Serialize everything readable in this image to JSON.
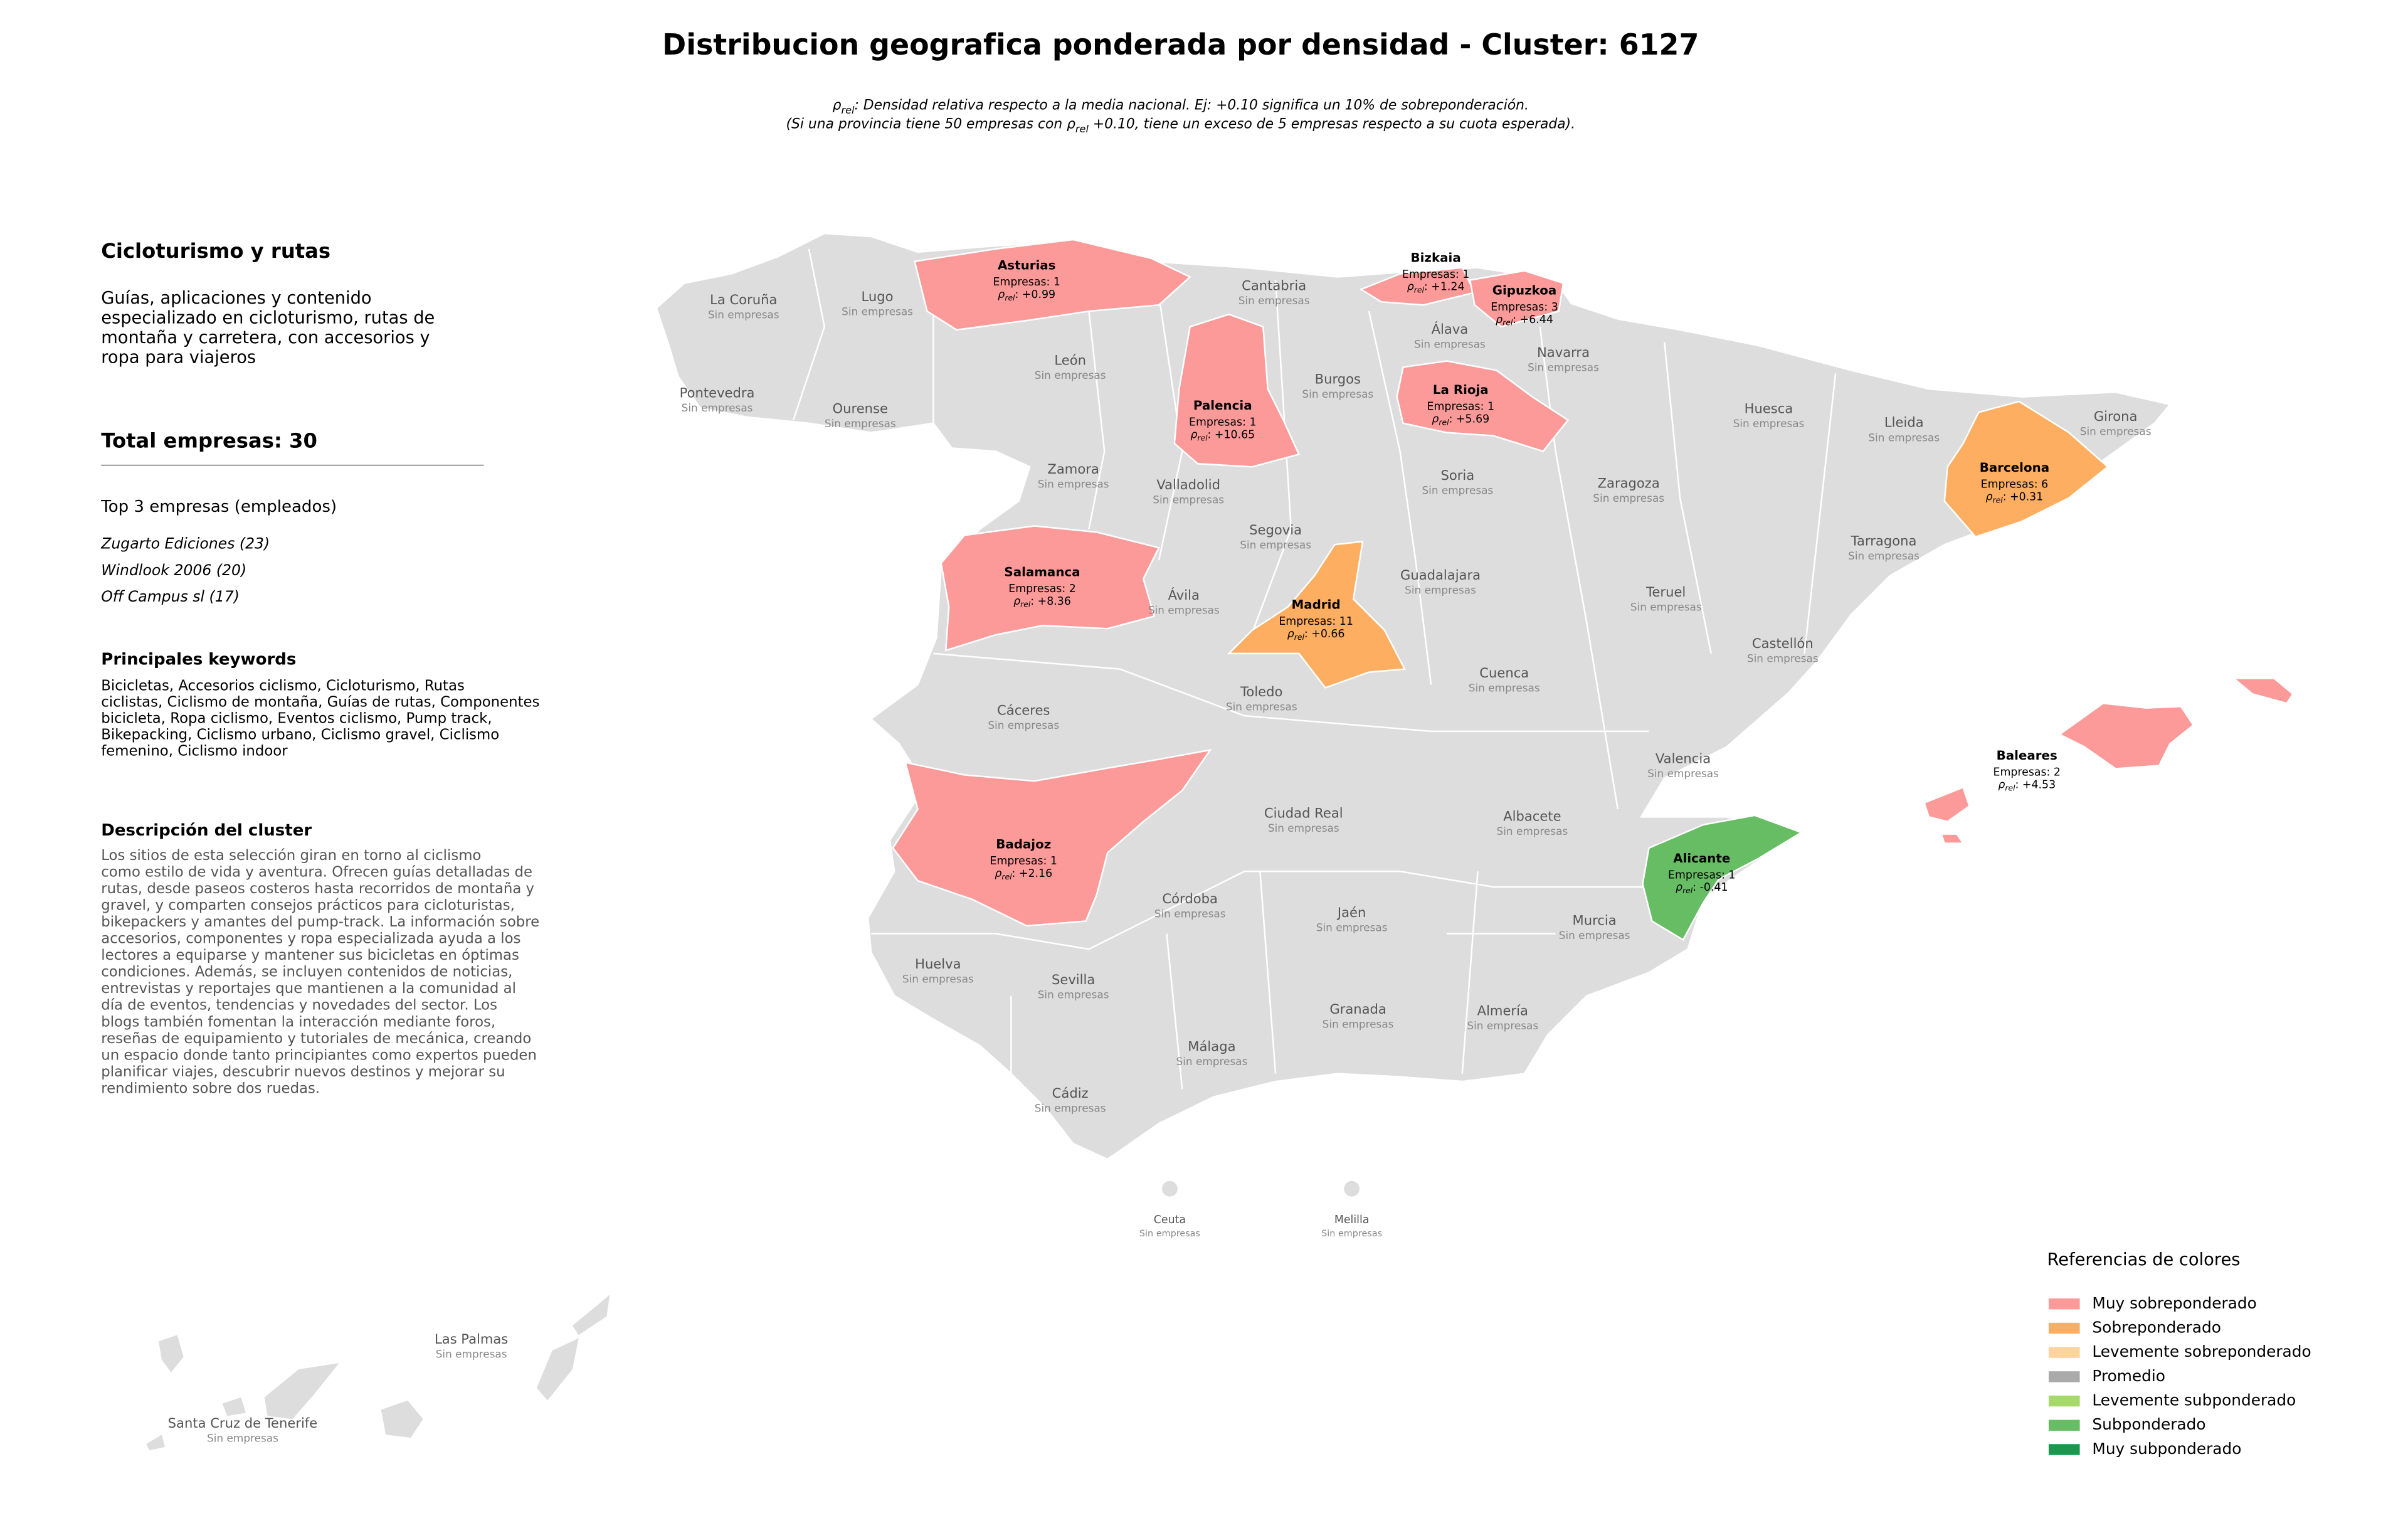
{
  "title": "Distribucion geografica ponderada por densidad - Cluster: 6127",
  "subtitle": {
    "line1": [
      "ρ",
      "rel",
      ": Densidad relativa respecto a la media nacional. Ej: +0.10 significa un 10% de sobreponderación."
    ],
    "line2": [
      "(Si una provincia tiene 50 empresas con ρ",
      "rel",
      " +0.10, tiene un exceso de 5 empresas respecto a su cuota esperada)."
    ]
  },
  "panel": {
    "heading": "Cicloturismo y rutas",
    "summary": [
      "Guías, aplicaciones y contenido",
      "especializado en cicloturismo, rutas de",
      "montaña y carretera, con accesorios y",
      "ropa para viajeros"
    ],
    "total": "Total empresas: 30",
    "top_heading": "Top 3 empresas (empleados)",
    "top": [
      "Zugarto Ediciones (23)",
      "Windlook 2006 (20)",
      "Off Campus sl (17)"
    ],
    "keywords_heading": "Principales keywords",
    "keywords": [
      "Bicicletas, Accesorios ciclismo, Cicloturismo, Rutas",
      "ciclistas, Ciclismo de montaña, Guías de rutas, Componentes",
      "bicicleta, Ropa ciclismo, Eventos ciclismo, Pump track,",
      "Bikepacking, Ciclismo urbano, Ciclismo gravel, Ciclismo",
      "femenino, Ciclismo indoor"
    ],
    "description_heading": "Descripción del cluster",
    "description": [
      "Los sitios de esta selección giran en torno al ciclismo",
      "como estilo de vida y aventura. Ofrecen guías detalladas de",
      "rutas, desde paseos costeros hasta recorridos de montaña y",
      "gravel, y comparten consejos prácticos para cicloturistas,",
      "bikepackers y amantes del pump-track. La información sobre",
      "accesorios, componentes y ropa especializada ayuda a los",
      "lectores a equiparse y mantener sus bicicletas en óptimas",
      "condiciones. Además, se incluyen contenidos de noticias,",
      "entrevistas y reportajes que mantienen a la comunidad al",
      "día de eventos, tendencias y novedades del sector. Los",
      "blogs también fomentan la interacción mediante foros,",
      "reseñas de equipamiento y tutoriales de mecánica, creando",
      "un espacio donde tanto principiantes como expertos pueden",
      "planificar viajes, descubrir nuevos destinos y mejorar su",
      "rendimiento sobre dos ruedas."
    ]
  },
  "rho_symbol": "ρ",
  "rho_subscript": "rel",
  "provinces": [
    {
      "name": "Asturias",
      "count": "Empresas: 1",
      "rho": ": +0.99",
      "color": "#fb9a99"
    },
    {
      "name": "Bizkaia",
      "count": "Empresas: 1",
      "rho": ": +1.24",
      "color": "#fb9a99"
    },
    {
      "name": "Gipuzkoa",
      "count": "Empresas: 3",
      "rho": ": +6.44",
      "color": "#fb9a99"
    },
    {
      "name": "Palencia",
      "count": "Empresas: 1",
      "rho": ": +10.65",
      "color": "#fb9a99"
    },
    {
      "name": "La Rioja",
      "count": "Empresas: 1",
      "rho": ": +5.69",
      "color": "#fb9a99"
    },
    {
      "name": "Barcelona",
      "count": "Empresas: 6",
      "rho": ": +0.31",
      "color": "#fdae61"
    },
    {
      "name": "Salamanca",
      "count": "Empresas: 2",
      "rho": ": +8.36",
      "color": "#fb9a99"
    },
    {
      "name": "Madrid",
      "count": "Empresas: 11",
      "rho": ": +0.66",
      "color": "#fdae61"
    },
    {
      "name": "Badajoz",
      "count": "Empresas: 1",
      "rho": ": +2.16",
      "color": "#fb9a99"
    },
    {
      "name": "Alicante",
      "count": "Empresas: 1",
      "rho": ": -0.41",
      "color": "#66bd63"
    },
    {
      "name": "Baleares",
      "count": "Empresas: 2",
      "rho": ": +4.53",
      "color": "#fb9a99"
    }
  ],
  "empty_provinces": [
    {
      "name": "La Coruña",
      "note": "Sin empresas"
    },
    {
      "name": "Lugo",
      "note": "Sin empresas"
    },
    {
      "name": "Cantabria",
      "note": "Sin empresas"
    },
    {
      "name": "Álava",
      "note": "Sin empresas"
    },
    {
      "name": "Navarra",
      "note": "Sin empresas"
    },
    {
      "name": "León",
      "note": "Sin empresas"
    },
    {
      "name": "Burgos",
      "note": "Sin empresas"
    },
    {
      "name": "Pontevedra",
      "note": "Sin empresas"
    },
    {
      "name": "Ourense",
      "note": "Sin empresas"
    },
    {
      "name": "Huesca",
      "note": "Sin empresas"
    },
    {
      "name": "Lleida",
      "note": "Sin empresas"
    },
    {
      "name": "Girona",
      "note": "Sin empresas"
    },
    {
      "name": "Zamora",
      "note": "Sin empresas"
    },
    {
      "name": "Valladolid",
      "note": "Sin empresas"
    },
    {
      "name": "Soria",
      "note": "Sin empresas"
    },
    {
      "name": "Zaragoza",
      "note": "Sin empresas"
    },
    {
      "name": "Segovia",
      "note": "Sin empresas"
    },
    {
      "name": "Tarragona",
      "note": "Sin empresas"
    },
    {
      "name": "Guadalajara",
      "note": "Sin empresas"
    },
    {
      "name": "Ávila",
      "note": "Sin empresas"
    },
    {
      "name": "Teruel",
      "note": "Sin empresas"
    },
    {
      "name": "Castellón",
      "note": "Sin empresas"
    },
    {
      "name": "Cuenca",
      "note": "Sin empresas"
    },
    {
      "name": "Toledo",
      "note": "Sin empresas"
    },
    {
      "name": "Cáceres",
      "note": "Sin empresas"
    },
    {
      "name": "Valencia",
      "note": "Sin empresas"
    },
    {
      "name": "Ciudad Real",
      "note": "Sin empresas"
    },
    {
      "name": "Albacete",
      "note": "Sin empresas"
    },
    {
      "name": "Córdoba",
      "note": "Sin empresas"
    },
    {
      "name": "Jaén",
      "note": "Sin empresas"
    },
    {
      "name": "Huelva",
      "note": "Sin empresas"
    },
    {
      "name": "Murcia",
      "note": "Sin empresas"
    },
    {
      "name": "Sevilla",
      "note": "Sin empresas"
    },
    {
      "name": "Granada",
      "note": "Sin empresas"
    },
    {
      "name": "Almería",
      "note": "Sin empresas"
    },
    {
      "name": "Málaga",
      "note": "Sin empresas"
    },
    {
      "name": "Cádiz",
      "note": "Sin empresas"
    },
    {
      "name": "Ceuta",
      "note": "Sin empresas"
    },
    {
      "name": "Melilla",
      "note": "Sin empresas"
    },
    {
      "name": "Las Palmas",
      "note": "Sin empresas"
    },
    {
      "name": "Santa Cruz de Tenerife",
      "note": "Sin empresas"
    }
  ],
  "legend": {
    "title": "Referencias de colores",
    "items": [
      {
        "label": "Muy sobreponderado",
        "color": "#fb9a99"
      },
      {
        "label": "Sobreponderado",
        "color": "#fdae61"
      },
      {
        "label": "Levemente sobreponderado",
        "color": "#fdd49e"
      },
      {
        "label": "Promedio",
        "color": "#aaaaaa"
      },
      {
        "label": "Levemente subponderado",
        "color": "#a6d96a"
      },
      {
        "label": "Subponderado",
        "color": "#66bd63"
      },
      {
        "label": "Muy subponderado",
        "color": "#1a9850"
      }
    ]
  }
}
